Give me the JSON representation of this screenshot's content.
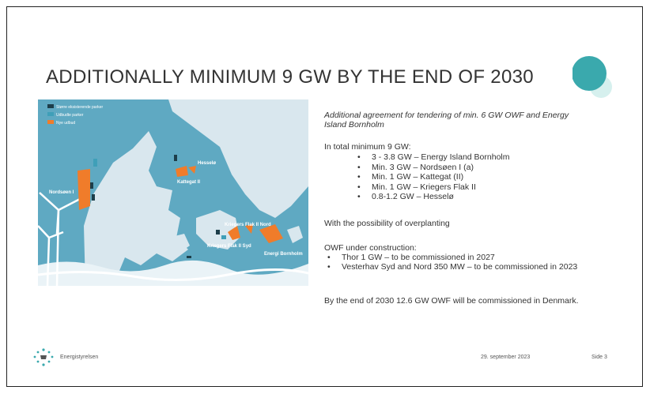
{
  "title": "ADDITIONALLY MINIMUM 9 GW BY THE END OF 2030",
  "map": {
    "legend": [
      "Større eksisterende parker",
      "Udbudte parker",
      "Nye udbud"
    ],
    "labels": [
      "Nordsøen I",
      "Kattegat II",
      "Hesselø",
      "Kriegers Flak II Nord",
      "Kriegers Flak II Syd",
      "Energi Bornholm"
    ]
  },
  "content": {
    "intro": "Additional agreement for tendering of min. 6 GW OWF and Energy Island Bornholm",
    "total_heading": "In total minimum 9 GW:",
    "total_items": [
      "3 - 3.8 GW – Energy Island Bornholm",
      "Min. 3 GW – Nordsøen I (a)",
      "Min. 1 GW – Kattegat (II)",
      "Min. 1 GW – Kriegers Flak II",
      "0.8-1.2 GW – Hesselø"
    ],
    "overplanting": "With the possibility of overplanting",
    "construction_heading": "OWF under construction:",
    "construction_items": [
      "Thor 1 GW – to be commissioned in 2027",
      "Vesterhav Syd and Nord 350 MW – to be commissioned in 2023"
    ],
    "conclusion": "By the end of 2030 12.6 GW OWF will be commissioned in Denmark."
  },
  "footer": {
    "org": "Energistyrelsen",
    "date": "29. september 2023",
    "page": "Side 3"
  }
}
